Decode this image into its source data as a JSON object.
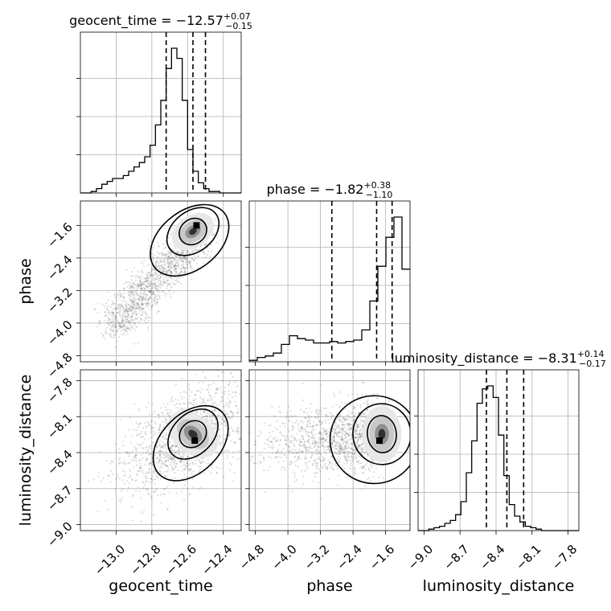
{
  "chart_data": {
    "type": "corner",
    "parameters": [
      "geocent_time",
      "phase",
      "luminosity_distance"
    ],
    "axis_labels": {
      "x": [
        "geocent_time",
        "phase",
        "luminosity_distance"
      ],
      "y": [
        "phase",
        "luminosity_distance"
      ]
    },
    "titles": [
      {
        "param": "geocent_time",
        "lhs": "geocent_time = −12.57",
        "plus": "+0.07",
        "minus": "−0.15"
      },
      {
        "param": "phase",
        "lhs": "phase = −1.82",
        "plus": "+0.38",
        "minus": "−1.10"
      },
      {
        "param": "luminosity_distance",
        "lhs": "luminosity_distance = −8.31",
        "plus": "+0.14",
        "minus": "−0.17"
      }
    ],
    "ranges": {
      "geocent_time": [
        -13.2,
        -12.3
      ],
      "phase": [
        -4.95,
        -1.0
      ],
      "luminosity_distance": [
        -9.05,
        -7.71
      ]
    },
    "ticks": {
      "geocent_time": {
        "values": [
          -13.0,
          -12.8,
          -12.6,
          -12.4
        ],
        "labels": [
          "−13.0",
          "−12.8",
          "−12.6",
          "−12.4"
        ]
      },
      "phase": {
        "values": [
          -4.8,
          -4.0,
          -3.2,
          -2.4,
          -1.6
        ],
        "labels": [
          "−4.8",
          "−4.0",
          "−3.2",
          "−2.4",
          "−1.6"
        ]
      },
      "luminosity_distance": {
        "values": [
          -9.0,
          -8.7,
          -8.4,
          -8.1,
          -7.8
        ],
        "labels": [
          "−9.0",
          "−8.7",
          "−8.4",
          "−8.1",
          "−7.8"
        ]
      }
    },
    "quantiles": {
      "geocent_time": [
        -12.72,
        -12.57,
        -12.5
      ],
      "phase": [
        -2.92,
        -1.82,
        -1.44
      ],
      "luminosity_distance": [
        -8.48,
        -8.31,
        -8.17
      ]
    },
    "histograms": {
      "geocent_time": {
        "start": -13.2,
        "step": 0.03,
        "counts": [
          0,
          0,
          1,
          3,
          6,
          8,
          10,
          10,
          12,
          15,
          18,
          21,
          25,
          33,
          47,
          64,
          86,
          100,
          93,
          64,
          30,
          15,
          7,
          3,
          1,
          1,
          0,
          0,
          0,
          0
        ]
      },
      "phase": {
        "start": -4.95,
        "step": 0.1975,
        "counts": [
          1,
          3,
          4,
          6,
          12,
          18,
          16,
          15,
          13,
          13,
          14,
          13,
          14,
          15,
          22,
          42,
          66,
          86,
          100,
          64
        ]
      },
      "luminosity_distance": {
        "start": -9.05,
        "step": 0.0447,
        "counts": [
          0,
          0,
          1,
          2,
          3,
          5,
          7,
          11,
          20,
          40,
          62,
          88,
          98,
          100,
          92,
          66,
          38,
          18,
          10,
          6,
          3,
          2,
          1,
          0,
          0,
          0,
          0,
          0,
          0,
          0
        ]
      }
    },
    "pairs": [
      {
        "x": "geocent_time",
        "y": "phase",
        "mode": [
          -12.55,
          -1.6
        ]
      },
      {
        "x": "geocent_time",
        "y": "luminosity_distance",
        "mode": [
          -12.56,
          -8.3
        ]
      },
      {
        "x": "phase",
        "y": "luminosity_distance",
        "mode": [
          -1.75,
          -8.3
        ]
      }
    ],
    "grid": true
  }
}
